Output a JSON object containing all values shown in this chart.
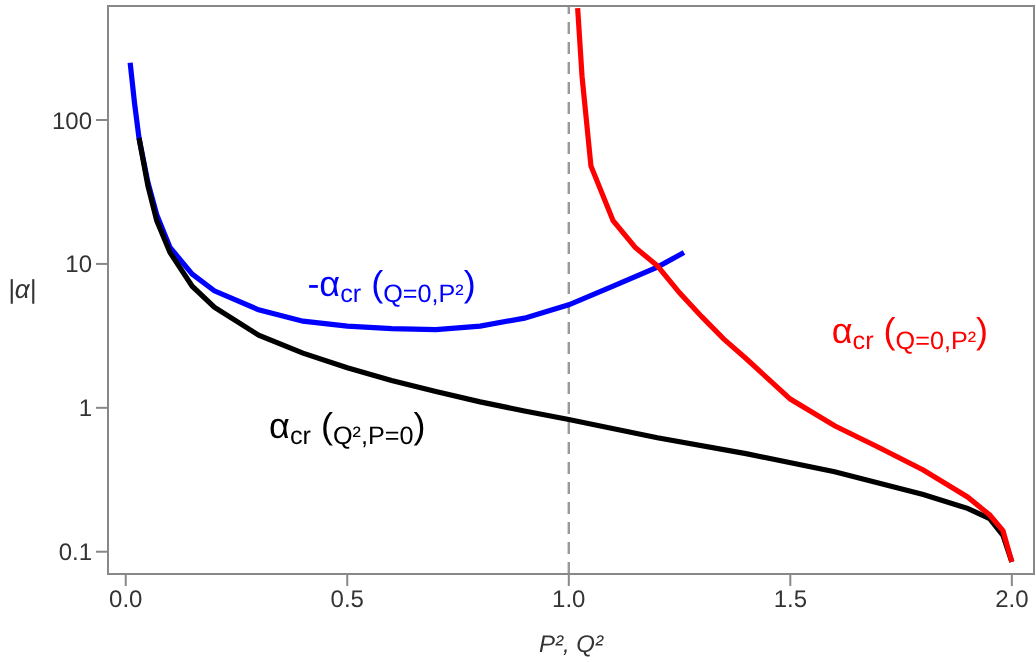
{
  "chart_data": {
    "type": "line",
    "xlabel": "P², Q²",
    "ylabel": "|α|",
    "log": "y",
    "xlim": [
      -0.04,
      2.05
    ],
    "xticks": [
      {
        "value": 0,
        "label": "0.0"
      },
      0.5,
      {
        "value": 1,
        "label": "1.0"
      },
      1.5,
      {
        "value": 2,
        "label": "2.0"
      }
    ],
    "ylim": [
      0.07,
      620
    ],
    "yticks": [
      0.1,
      1,
      10,
      100
    ],
    "grid": false,
    "legend": false,
    "marker": "none",
    "line_style": "solid",
    "ref_lines": [
      {
        "axis": "x",
        "value": 1,
        "color": "#999999",
        "line_style": "dashed"
      }
    ],
    "series": [
      {
        "name": "-α$_{cr}$ ($_{Q=0,P²}$)",
        "color": "#0000ff",
        "x": [
          0.01,
          0.02,
          0.03,
          0.05,
          0.07,
          0.1,
          0.15,
          0.2,
          0.3,
          0.4,
          0.5,
          0.6,
          0.7,
          0.8,
          0.9,
          1.0,
          1.1,
          1.2,
          1.26
        ],
        "values": [
          250,
          130,
          75,
          37,
          22,
          13,
          8.5,
          6.5,
          4.8,
          4.0,
          3.7,
          3.55,
          3.5,
          3.7,
          4.2,
          5.2,
          7,
          9.5,
          12
        ]
      },
      {
        "name": "α$_{cr}$ ($_{Q²,P=0}$)",
        "color": "#000000",
        "x": [
          0.03,
          0.05,
          0.07,
          0.1,
          0.15,
          0.2,
          0.3,
          0.4,
          0.5,
          0.6,
          0.7,
          0.8,
          0.9,
          1.0,
          1.2,
          1.4,
          1.6,
          1.8,
          1.9,
          1.95,
          1.98,
          2.0
        ],
        "values": [
          75,
          35,
          20,
          12,
          7,
          5,
          3.2,
          2.4,
          1.9,
          1.55,
          1.3,
          1.1,
          0.95,
          0.83,
          0.62,
          0.48,
          0.36,
          0.25,
          0.2,
          0.17,
          0.13,
          0.085
        ]
      },
      {
        "name": "α$_{cr}$ ($_{Q=0,P²}$)",
        "color": "#ff0000",
        "x": [
          1.02,
          1.03,
          1.05,
          1.1,
          1.15,
          1.2,
          1.25,
          1.3,
          1.35,
          1.4,
          1.5,
          1.6,
          1.7,
          1.8,
          1.9,
          1.95,
          1.98,
          2.0
        ],
        "values": [
          600,
          200,
          48,
          20,
          13,
          9.7,
          6.3,
          4.3,
          3,
          2.2,
          1.15,
          0.75,
          0.53,
          0.37,
          0.24,
          0.18,
          0.14,
          0.085
        ]
      }
    ]
  }
}
